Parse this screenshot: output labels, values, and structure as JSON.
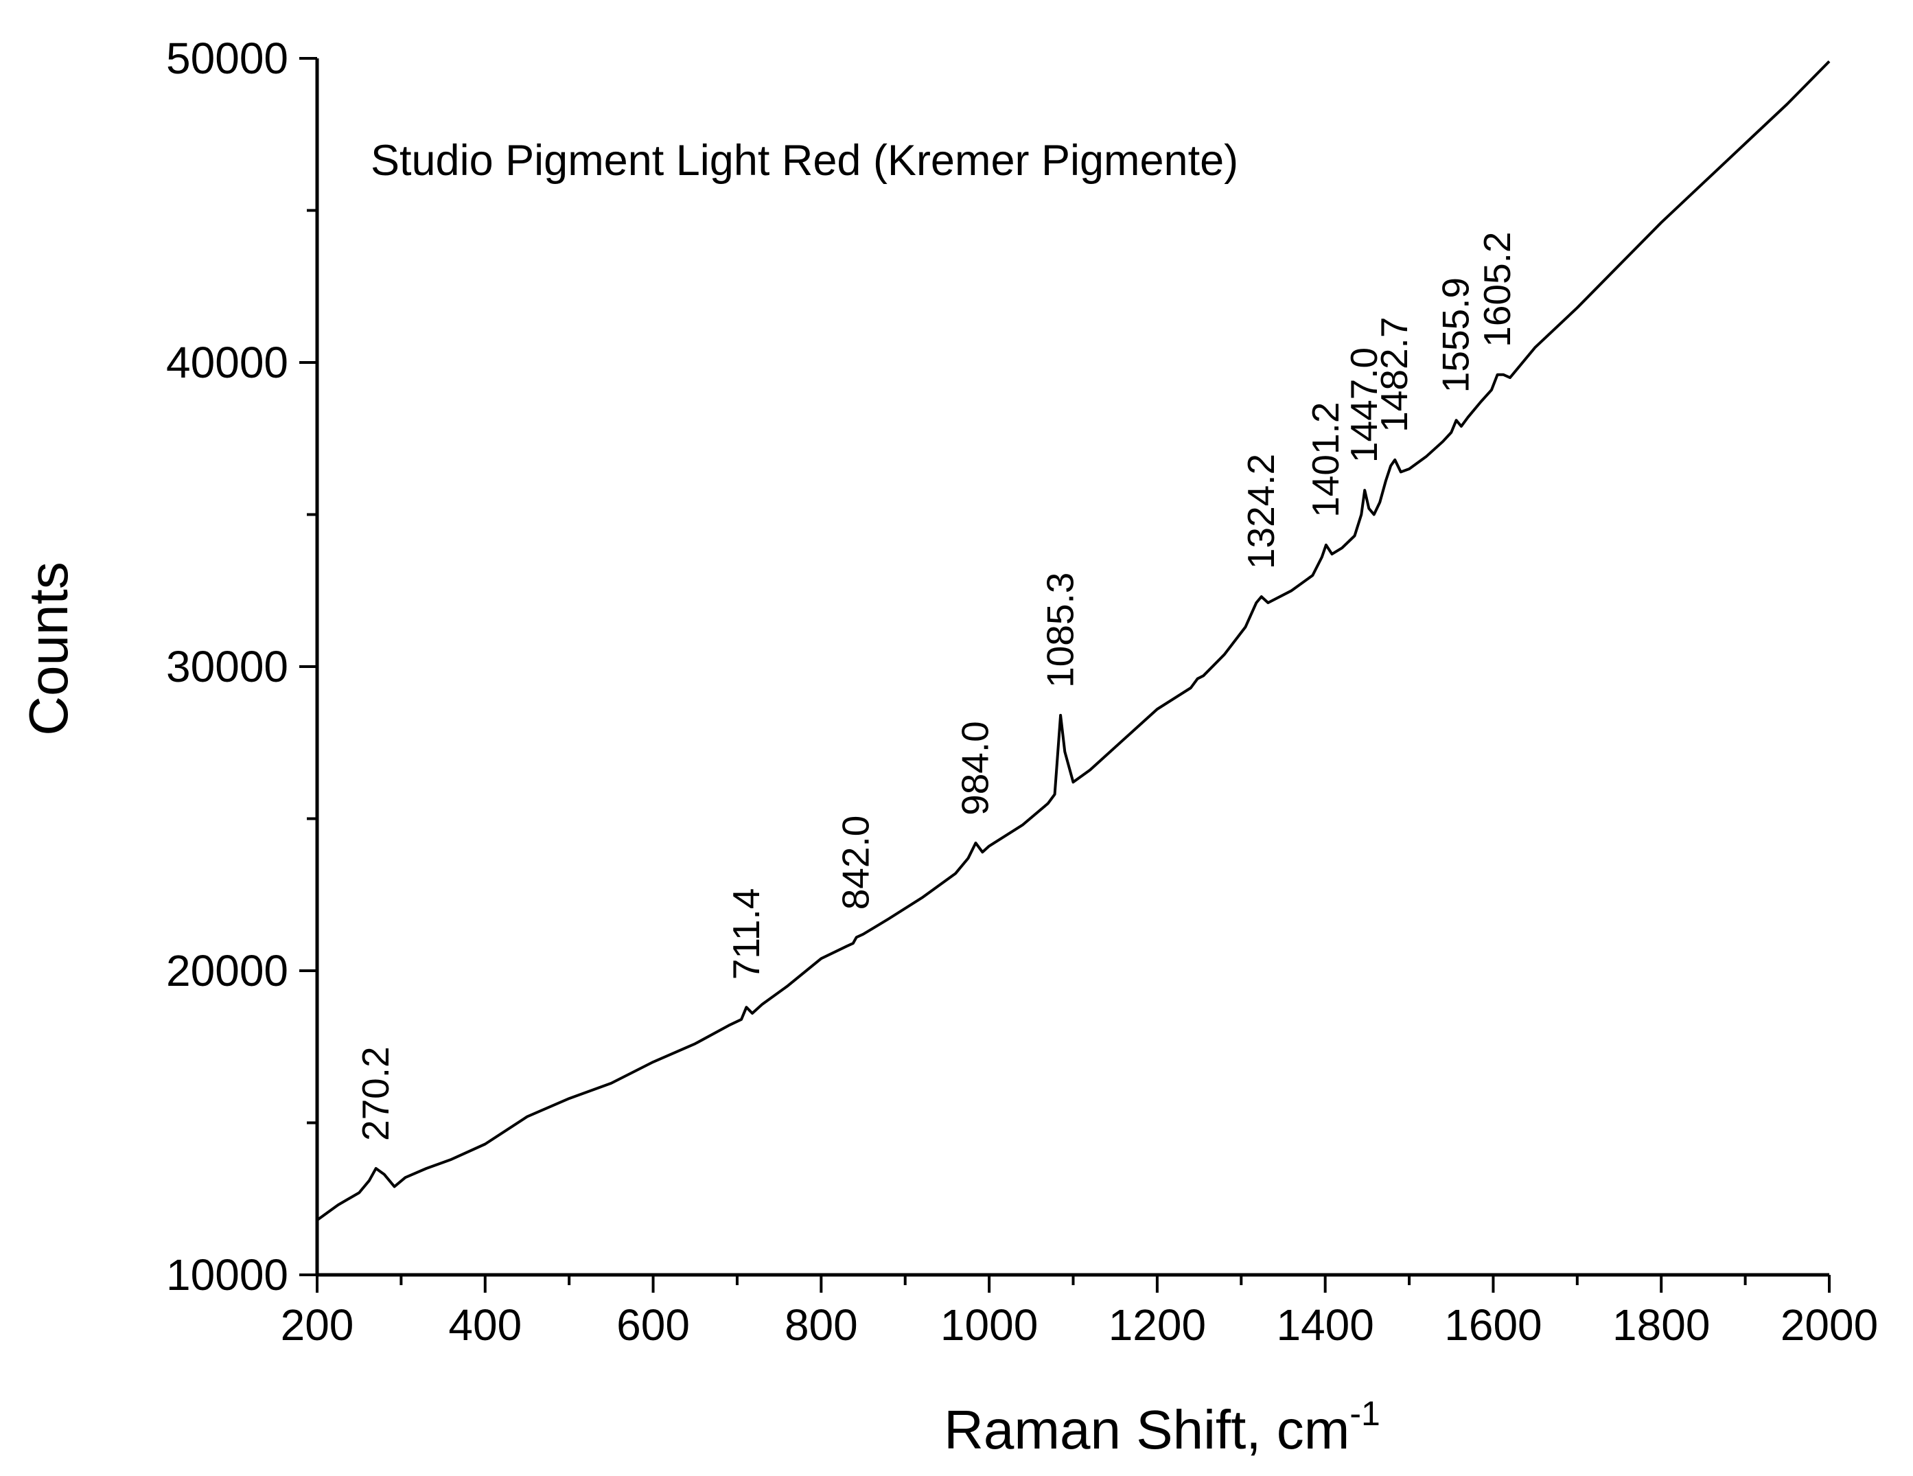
{
  "chart_data": {
    "type": "line",
    "title": "Studio Pigment Light Red (Kremer Pigmente)",
    "xlabel": "Raman Shift, cm",
    "xlabel_superscript": "-1",
    "ylabel": "Counts",
    "xlim": [
      200,
      2000
    ],
    "ylim": [
      10000,
      50000
    ],
    "x_ticks": [
      200,
      400,
      600,
      800,
      1000,
      1200,
      1400,
      1600,
      1800,
      2000
    ],
    "y_ticks": [
      10000,
      20000,
      30000,
      40000,
      50000
    ],
    "x_tick_labels": [
      "200",
      "400",
      "600",
      "800",
      "1000",
      "1200",
      "1400",
      "1600",
      "1800",
      "2000"
    ],
    "y_tick_labels": [
      "10000",
      "20000",
      "30000",
      "40000",
      "50000"
    ],
    "grid": false,
    "legend": "none",
    "line_color": "#000000",
    "series": [
      {
        "x": [
          200,
          225,
          250,
          262,
          270,
          280,
          292,
          305,
          330,
          360,
          400,
          450,
          500,
          550,
          600,
          650,
          690,
          705,
          711,
          718,
          730,
          760,
          800,
          830,
          838,
          842,
          850,
          880,
          920,
          960,
          975,
          984,
          992,
          1000,
          1040,
          1070,
          1078,
          1085,
          1090,
          1100,
          1120,
          1160,
          1200,
          1240,
          1248,
          1255,
          1280,
          1305,
          1318,
          1324,
          1332,
          1360,
          1385,
          1396,
          1401,
          1408,
          1420,
          1435,
          1443,
          1447,
          1452,
          1458,
          1465,
          1472,
          1478,
          1483,
          1490,
          1500,
          1520,
          1540,
          1550,
          1556,
          1562,
          1570,
          1585,
          1598,
          1605,
          1612,
          1620,
          1650,
          1700,
          1750,
          1800,
          1850,
          1900,
          1950,
          2000
        ],
        "y": [
          11800,
          12300,
          12700,
          13100,
          13500,
          13300,
          12900,
          13200,
          13500,
          13800,
          14300,
          15200,
          15800,
          16300,
          17000,
          17600,
          18200,
          18400,
          18800,
          18600,
          18900,
          19500,
          20400,
          20800,
          20900,
          21100,
          21200,
          21700,
          22400,
          23200,
          23700,
          24200,
          23900,
          24100,
          24800,
          25500,
          25800,
          28400,
          27200,
          26200,
          26600,
          27600,
          28600,
          29300,
          29600,
          29700,
          30400,
          31300,
          32100,
          32300,
          32100,
          32500,
          33000,
          33600,
          34000,
          33700,
          33900,
          34300,
          35000,
          35800,
          35200,
          35000,
          35400,
          36100,
          36600,
          36800,
          36400,
          36500,
          36900,
          37400,
          37700,
          38100,
          37900,
          38200,
          38700,
          39100,
          39600,
          39600,
          39500,
          40500,
          41800,
          43200,
          44600,
          45900,
          47200,
          48500,
          49900
        ]
      }
    ],
    "peak_labels": [
      {
        "x": 270.2,
        "y": 13500,
        "label": "270.2"
      },
      {
        "x": 711.4,
        "y": 18800,
        "label": "711.4"
      },
      {
        "x": 842.0,
        "y": 21100,
        "label": "842.0"
      },
      {
        "x": 984.0,
        "y": 24200,
        "label": "984.0"
      },
      {
        "x": 1085.3,
        "y": 28400,
        "label": "1085.3"
      },
      {
        "x": 1324.2,
        "y": 32300,
        "label": "1324.2"
      },
      {
        "x": 1401.2,
        "y": 34000,
        "label": "1401.2"
      },
      {
        "x": 1447.0,
        "y": 35800,
        "label": "1447.0"
      },
      {
        "x": 1482.7,
        "y": 36800,
        "label": "1482.7"
      },
      {
        "x": 1555.9,
        "y": 38100,
        "label": "1555.9"
      },
      {
        "x": 1605.2,
        "y": 39600,
        "label": "1605.2"
      }
    ]
  }
}
